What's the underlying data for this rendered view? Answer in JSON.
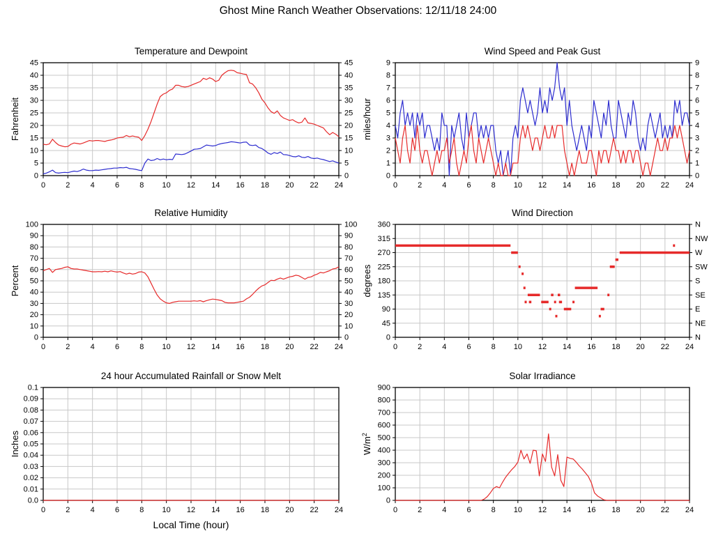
{
  "page_title": "Ghost Mine Ranch Weather Observations: 12/11/18 24:00",
  "colors": {
    "series_red": "#e62a2a",
    "series_blue": "#2c2ccf",
    "grid": "#c8c8c8",
    "axis": "#000000",
    "background": "#ffffff"
  },
  "x_tick_labels": [
    "0",
    "2",
    "4",
    "6",
    "8",
    "10",
    "12",
    "14",
    "16",
    "18",
    "20",
    "22",
    "24"
  ],
  "x_tick_values": [
    0,
    2,
    4,
    6,
    8,
    10,
    12,
    14,
    16,
    18,
    20,
    22,
    24
  ],
  "chart_data": [
    {
      "name": "temperature-dewpoint",
      "type": "line",
      "title": "Temperature and Dewpoint",
      "ylabel": "Fahrenheit",
      "ylim": [
        0,
        45
      ],
      "yticks": [
        0,
        5,
        10,
        15,
        20,
        25,
        30,
        35,
        40,
        45
      ],
      "ytick_labels": [
        "0",
        "5",
        "10",
        "15",
        "20",
        "25",
        "30",
        "35",
        "40",
        "45"
      ],
      "mirror_right": true,
      "xlim": [
        0,
        24
      ],
      "series": [
        {
          "name": "temperature",
          "color_key": "series_red",
          "x_step": 0.25,
          "values": [
            12.5,
            12.3,
            12.6,
            14.5,
            13.2,
            12.2,
            11.8,
            11.5,
            11.6,
            12.5,
            13.0,
            12.8,
            12.6,
            13.0,
            13.5,
            14.0,
            13.8,
            14.0,
            14.0,
            13.8,
            13.6,
            14.0,
            14.2,
            14.5,
            15.0,
            15.2,
            15.3,
            16.0,
            15.5,
            15.8,
            15.5,
            15.3,
            14.0,
            16.0,
            18.5,
            21.5,
            25.0,
            28.5,
            31.5,
            32.5,
            33.0,
            34.0,
            34.5,
            36.0,
            36.0,
            35.5,
            35.3,
            35.5,
            36.0,
            36.5,
            37.0,
            37.5,
            38.8,
            38.3,
            39.0,
            38.5,
            37.5,
            38.0,
            40.0,
            41.0,
            41.8,
            42.0,
            41.8,
            41.0,
            40.8,
            40.5,
            40.3,
            37.0,
            36.5,
            35.0,
            33.0,
            30.5,
            29.0,
            27.0,
            25.5,
            24.8,
            25.8,
            24.0,
            23.0,
            22.5,
            22.0,
            22.3,
            21.5,
            21.0,
            21.3,
            23.0,
            21.0,
            20.8,
            20.5,
            20.0,
            19.5,
            19.0,
            17.5,
            16.3,
            17.2,
            16.5,
            15.5
          ]
        },
        {
          "name": "dewpoint",
          "color_key": "series_blue",
          "x_step": 0.25,
          "values": [
            0.7,
            1.0,
            1.5,
            2.2,
            1.2,
            1.0,
            1.2,
            1.3,
            1.2,
            1.5,
            1.8,
            1.6,
            2.0,
            2.6,
            2.2,
            2.0,
            2.0,
            2.2,
            2.1,
            2.3,
            2.5,
            2.7,
            2.8,
            3.0,
            3.0,
            3.2,
            3.1,
            3.3,
            2.8,
            2.7,
            2.5,
            2.2,
            2.0,
            5.0,
            6.6,
            6.0,
            6.2,
            6.8,
            6.3,
            6.6,
            6.3,
            6.5,
            6.4,
            8.6,
            8.5,
            8.4,
            8.6,
            9.2,
            9.8,
            10.5,
            10.6,
            10.8,
            11.5,
            12.2,
            12.0,
            11.8,
            12.0,
            12.5,
            12.8,
            13.0,
            13.2,
            13.5,
            13.4,
            13.2,
            13.0,
            13.3,
            13.4,
            12.2,
            12.0,
            12.2,
            11.2,
            10.8,
            10.0,
            9.0,
            8.5,
            9.2,
            8.8,
            9.4,
            8.4,
            8.3,
            8.0,
            7.6,
            7.5,
            7.9,
            7.3,
            7.2,
            7.6,
            7.0,
            6.8,
            7.0,
            6.6,
            6.4,
            6.0,
            5.6,
            5.9,
            5.4,
            5.0
          ]
        }
      ]
    },
    {
      "name": "wind-speed-peak-gust",
      "type": "line",
      "title": "Wind Speed and Peak Gust",
      "ylabel": "miles/hour",
      "ylim": [
        0,
        9
      ],
      "yticks": [
        0,
        1,
        2,
        3,
        4,
        5,
        6,
        7,
        8,
        9
      ],
      "ytick_labels": [
        "0",
        "1",
        "2",
        "3",
        "4",
        "5",
        "6",
        "7",
        "8",
        "9"
      ],
      "mirror_right": true,
      "xlim": [
        0,
        24
      ],
      "series": [
        {
          "name": "peak-gust",
          "color_key": "series_blue",
          "x_step": 0.2,
          "values": [
            4,
            3,
            5,
            6,
            4,
            5,
            4,
            5,
            3,
            5,
            4,
            5,
            3,
            4,
            4,
            3,
            2,
            3,
            2,
            5,
            4,
            4,
            0,
            4,
            3,
            4,
            5,
            3,
            2,
            5,
            3,
            4,
            5,
            5,
            3,
            4,
            3,
            4,
            3,
            4,
            4,
            2,
            1,
            2,
            0,
            1,
            2,
            0,
            3,
            4,
            3,
            6,
            7,
            6,
            5,
            6,
            5,
            4,
            5,
            7,
            5,
            6,
            5,
            7,
            6,
            7,
            9,
            7,
            6,
            7,
            4,
            6,
            4,
            3,
            2,
            3,
            4,
            3,
            2,
            4,
            3,
            6,
            5,
            4,
            3,
            5,
            4,
            6,
            4,
            3,
            3,
            6,
            5,
            4,
            3,
            5,
            4,
            6,
            5,
            3,
            2,
            3,
            2,
            4,
            5,
            4,
            3,
            4,
            5,
            3,
            4,
            3,
            4,
            3,
            6,
            5,
            6,
            4,
            5,
            5,
            4
          ]
        },
        {
          "name": "wind-speed",
          "color_key": "series_red",
          "x_step": 0.2,
          "values": [
            3,
            2,
            1,
            3,
            4,
            2,
            1,
            3,
            2,
            4,
            2,
            1,
            2,
            2,
            1,
            0,
            1,
            2,
            1,
            2,
            2,
            3,
            1,
            2,
            3,
            1,
            0,
            1,
            2,
            1,
            3,
            4,
            2,
            1,
            3,
            2,
            1,
            2,
            3,
            2,
            1,
            0,
            1,
            0,
            0,
            1,
            0,
            0,
            1,
            1,
            1,
            3,
            4,
            3,
            4,
            3,
            2,
            3,
            3,
            2,
            3,
            4,
            3,
            3,
            4,
            3,
            4,
            4,
            4,
            2,
            1,
            0,
            1,
            0,
            1,
            2,
            1,
            1,
            1,
            2,
            2,
            1,
            0,
            2,
            1,
            2,
            2,
            1,
            2,
            3,
            2,
            2,
            1,
            2,
            1,
            2,
            2,
            1,
            2,
            2,
            1,
            0,
            1,
            1,
            0,
            1,
            2,
            3,
            2,
            2,
            3,
            2,
            3,
            3,
            4,
            3,
            4,
            3,
            2,
            1,
            2
          ]
        }
      ]
    },
    {
      "name": "relative-humidity",
      "type": "line",
      "title": "Relative Humidity",
      "ylabel": "Percent",
      "ylim": [
        0,
        100
      ],
      "yticks": [
        0,
        10,
        20,
        30,
        40,
        50,
        60,
        70,
        80,
        90,
        100
      ],
      "ytick_labels": [
        "0",
        "10",
        "20",
        "30",
        "40",
        "50",
        "60",
        "70",
        "80",
        "90",
        "100"
      ],
      "mirror_right": true,
      "xlim": [
        0,
        24
      ],
      "series": [
        {
          "name": "relative-humidity",
          "color_key": "series_red",
          "x_step": 0.25,
          "values": [
            59,
            60,
            61,
            57.5,
            60,
            60.5,
            61,
            62,
            62.5,
            61,
            60.5,
            60.5,
            60,
            59.5,
            59,
            58.5,
            58,
            58,
            58.2,
            58,
            58.5,
            58,
            58.8,
            58.2,
            57.8,
            58.2,
            57,
            56,
            56.8,
            56,
            56.5,
            57.8,
            58,
            57,
            53.5,
            48,
            42.5,
            37.5,
            34,
            32,
            30.5,
            30,
            31,
            31.5,
            32,
            32,
            32,
            32,
            32,
            32.3,
            32,
            32.5,
            31.5,
            32.5,
            33.2,
            33.8,
            33.5,
            33,
            32.5,
            31,
            30.5,
            30.5,
            30.5,
            31,
            31.5,
            32,
            34,
            35.5,
            38,
            41,
            43.5,
            45.5,
            46.5,
            48.5,
            50.5,
            50.2,
            51.5,
            52.5,
            51.5,
            52.5,
            53.5,
            54,
            55,
            54.5,
            53,
            51.5,
            53,
            53.5,
            55,
            56,
            57.5,
            57,
            58,
            59,
            60.5,
            61,
            62.5
          ]
        }
      ]
    },
    {
      "name": "wind-direction",
      "type": "scatter",
      "title": "Wind Direction",
      "ylabel": "degrees",
      "ylim": [
        0,
        360
      ],
      "yticks": [
        0,
        45,
        90,
        135,
        180,
        225,
        270,
        315,
        360
      ],
      "ytick_labels": [
        "0",
        "45",
        "90",
        "135",
        "180",
        "225",
        "270",
        "315",
        "360"
      ],
      "mirror_right": false,
      "right_tick_labels": [
        "N",
        "NE",
        "E",
        "SE",
        "S",
        "SW",
        "W",
        "NW",
        "N"
      ],
      "xlim": [
        0,
        24
      ],
      "series": [
        {
          "name": "wind-direction",
          "color_key": "series_red",
          "segments": [
            [
              0.0,
              9.4,
              292.5
            ],
            [
              9.45,
              10.0,
              270
            ],
            [
              10.05,
              10.2,
              225
            ],
            [
              10.3,
              10.35,
              202.5
            ],
            [
              10.45,
              10.55,
              157.5
            ],
            [
              10.55,
              10.7,
              112.5
            ],
            [
              10.8,
              11.8,
              135
            ],
            [
              10.9,
              11.1,
              112.5
            ],
            [
              11.9,
              12.5,
              112.5
            ],
            [
              12.55,
              12.65,
              90
            ],
            [
              12.7,
              12.9,
              135
            ],
            [
              12.95,
              13.1,
              112.5
            ],
            [
              13.05,
              13.2,
              67.5
            ],
            [
              13.25,
              13.45,
              135
            ],
            [
              13.35,
              13.6,
              112.5
            ],
            [
              13.75,
              14.35,
              90
            ],
            [
              14.45,
              14.6,
              112.5
            ],
            [
              14.65,
              16.5,
              157.5
            ],
            [
              16.6,
              16.7,
              67.5
            ],
            [
              16.75,
              17.05,
              90
            ],
            [
              17.3,
              17.4,
              135
            ],
            [
              17.5,
              17.9,
              225
            ],
            [
              17.95,
              18.2,
              247.5
            ],
            [
              18.3,
              24.0,
              270
            ],
            [
              22.65,
              22.75,
              292.5
            ]
          ]
        }
      ]
    },
    {
      "name": "rainfall-snowmelt",
      "type": "line",
      "title": "24 hour Accumulated Rainfall or Snow Melt",
      "ylabel": "Inches",
      "ylim": [
        0,
        0.1
      ],
      "yticks": [
        0,
        0.01,
        0.02,
        0.03,
        0.04,
        0.05,
        0.06,
        0.07,
        0.08,
        0.09,
        0.1
      ],
      "ytick_labels": [
        "0.0",
        "0.01",
        "0.02",
        "0.03",
        "0.04",
        "0.05",
        "0.06",
        "0.07",
        "0.08",
        "0.09",
        "0.1"
      ],
      "mirror_right": false,
      "xlim": [
        0,
        24
      ],
      "xlabel": "Local Time (hour)",
      "series": [
        {
          "name": "rainfall",
          "color_key": "series_red",
          "x_step": 24,
          "values": [
            0,
            0
          ]
        }
      ]
    },
    {
      "name": "solar-irradiance",
      "type": "line",
      "title": "Solar Irradiance",
      "ylabel": "W/m^2",
      "ylim": [
        0,
        900
      ],
      "yticks": [
        0,
        100,
        200,
        300,
        400,
        500,
        600,
        700,
        800,
        900
      ],
      "ytick_labels": [
        "0",
        "100",
        "200",
        "300",
        "400",
        "500",
        "600",
        "700",
        "800",
        "900"
      ],
      "mirror_right": false,
      "xlim": [
        0,
        24
      ],
      "series": [
        {
          "name": "solar-irradiance",
          "color_key": "series_red",
          "x_step": 0.25,
          "values": [
            0,
            0,
            0,
            0,
            0,
            0,
            0,
            0,
            0,
            0,
            0,
            0,
            0,
            0,
            0,
            0,
            0,
            0,
            0,
            0,
            0,
            0,
            0,
            0,
            0,
            0,
            0,
            0,
            0,
            10,
            30,
            60,
            95,
            110,
            100,
            145,
            185,
            215,
            245,
            270,
            305,
            400,
            330,
            370,
            295,
            400,
            395,
            195,
            370,
            310,
            530,
            265,
            195,
            365,
            160,
            110,
            345,
            335,
            330,
            305,
            275,
            250,
            220,
            190,
            140,
            60,
            35,
            20,
            5,
            0,
            0,
            0,
            0,
            0,
            0,
            0,
            0,
            0,
            0,
            0,
            0,
            0,
            0,
            0,
            0,
            0,
            0,
            0,
            0,
            0,
            0,
            0,
            0,
            0,
            0,
            0,
            0
          ]
        }
      ]
    }
  ]
}
